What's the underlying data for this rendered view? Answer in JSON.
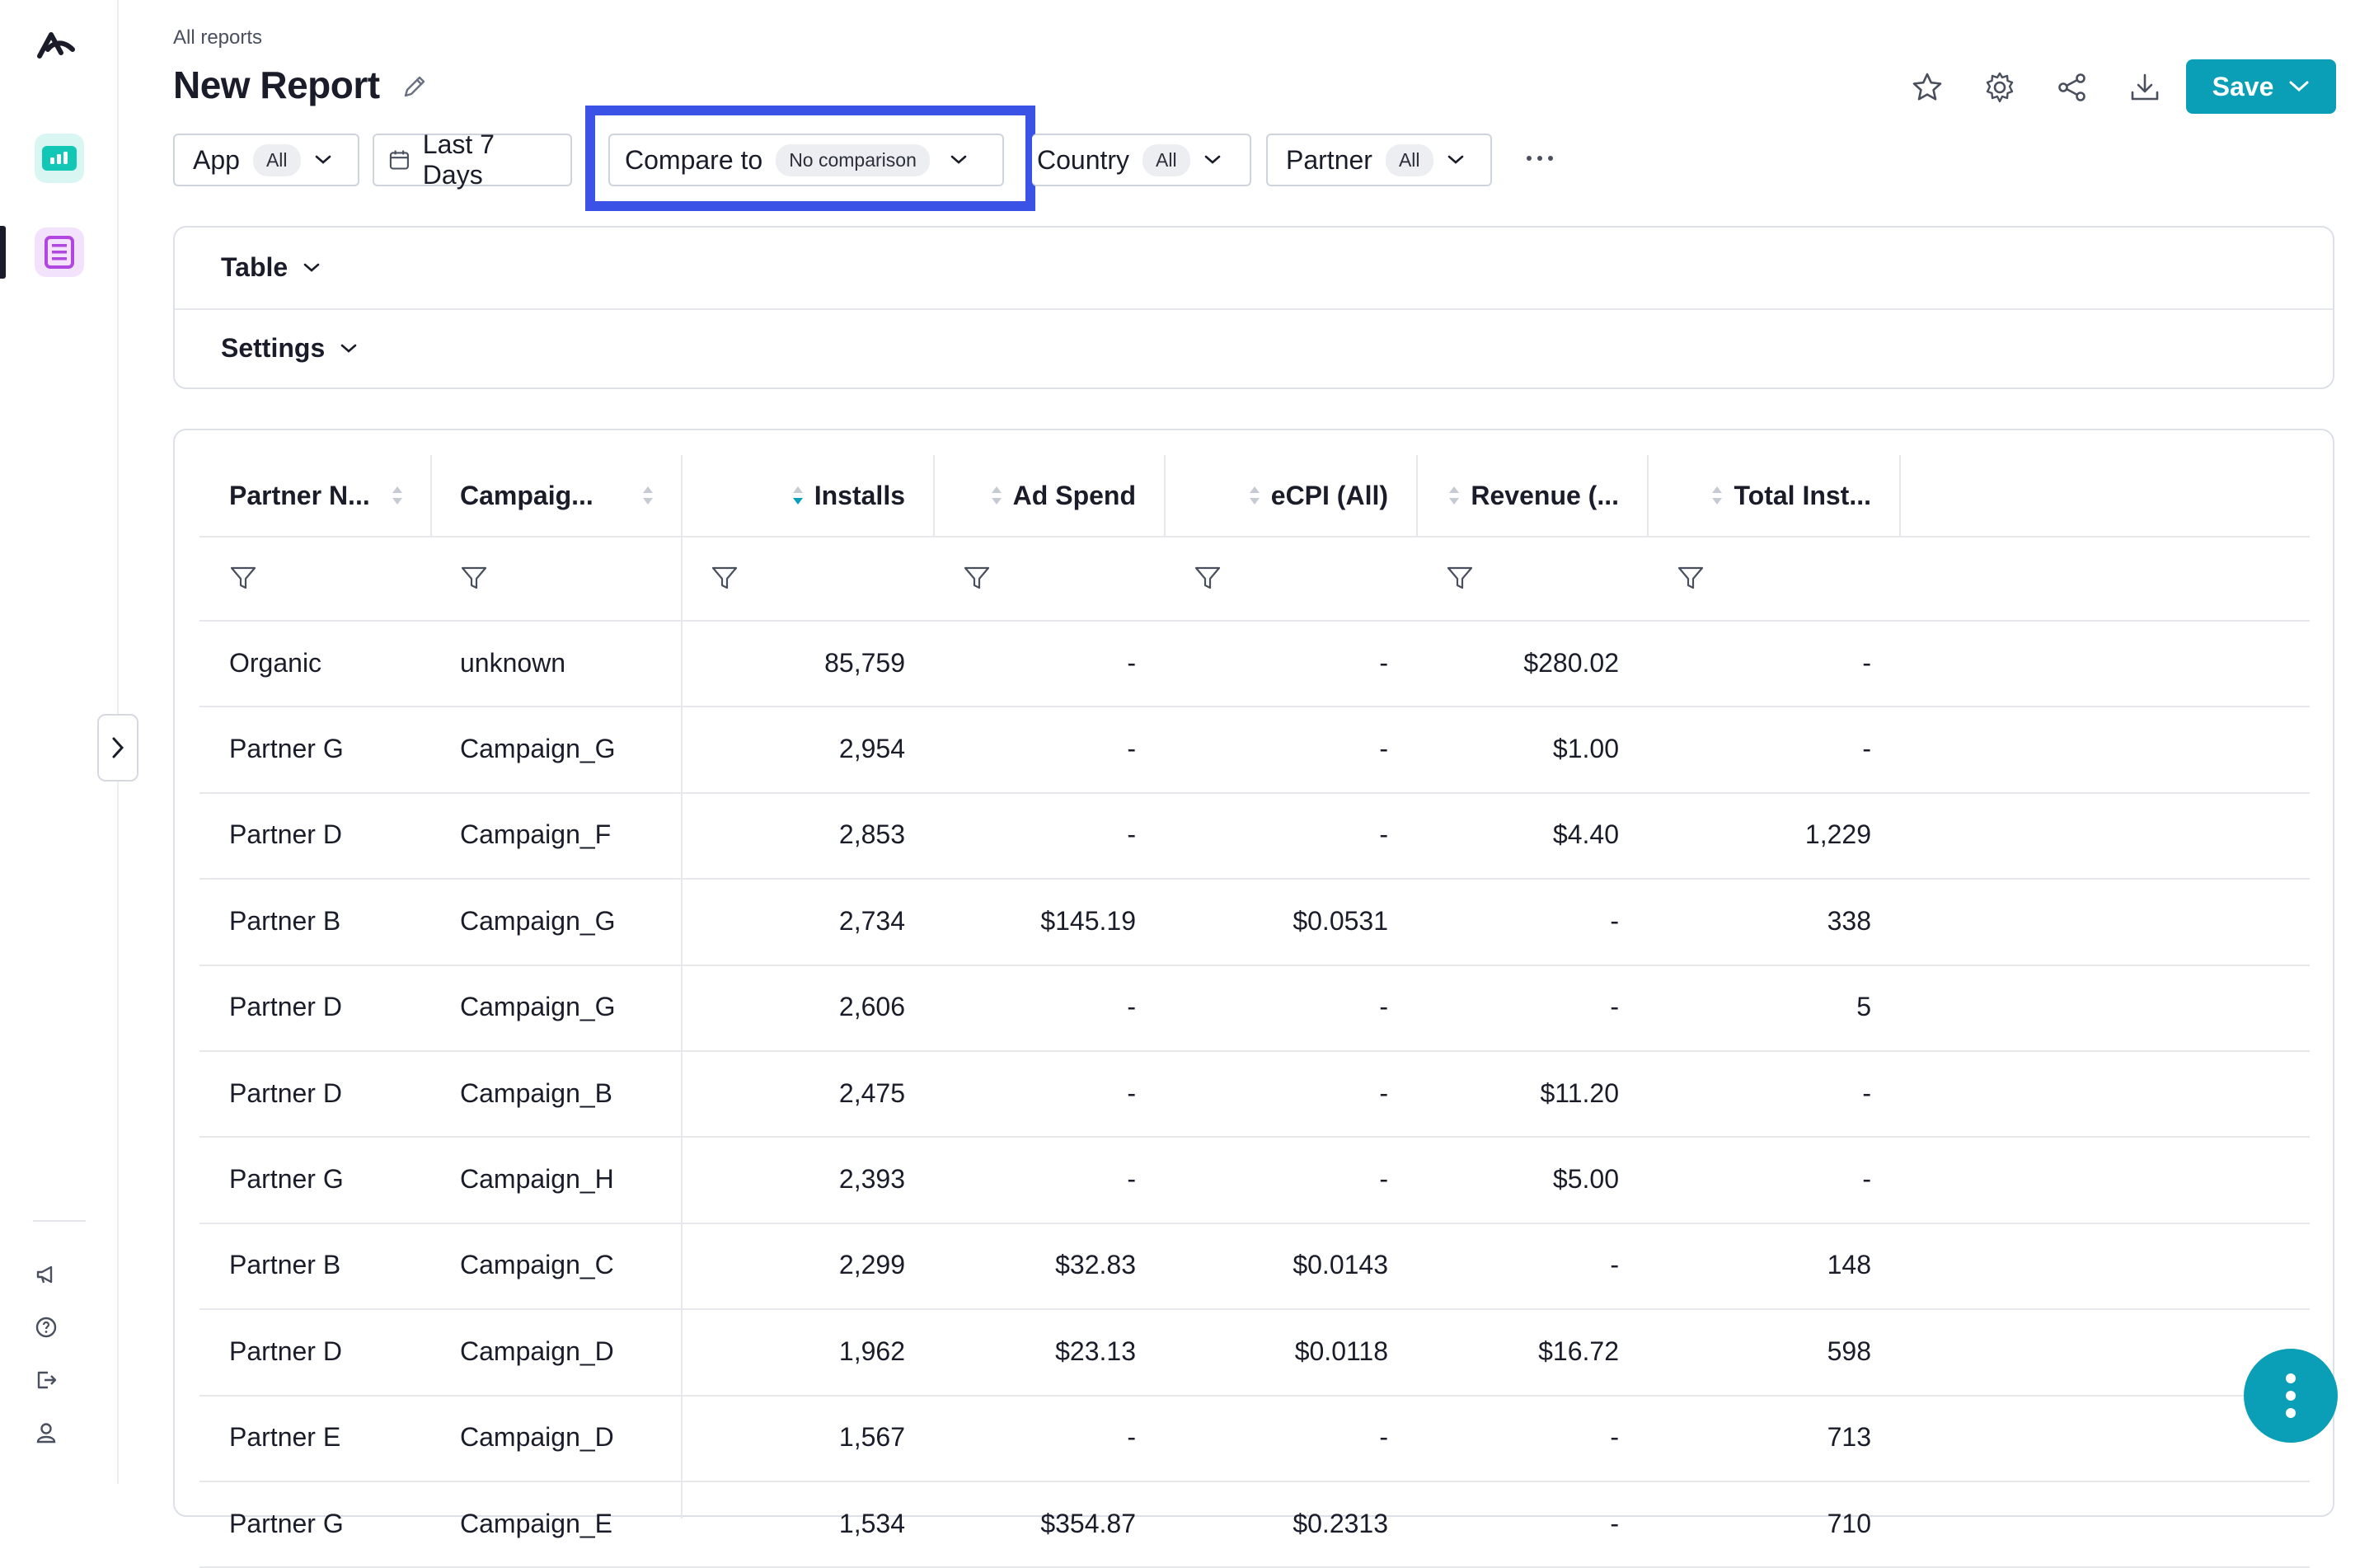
{
  "breadcrumb": "All reports",
  "page_title": "New Report",
  "toolbar": {
    "save_label": "Save"
  },
  "filters": {
    "app": {
      "label": "App",
      "value": "All"
    },
    "date": {
      "label": "Last 7 Days"
    },
    "compare": {
      "label": "Compare to",
      "value": "No comparison"
    },
    "country": {
      "label": "Country",
      "value": "All"
    },
    "partner": {
      "label": "Partner",
      "value": "All"
    }
  },
  "panels": {
    "table_label": "Table",
    "settings_label": "Settings"
  },
  "table": {
    "columns": [
      "Partner N...",
      "Campaig...",
      "Installs",
      "Ad Spend",
      "eCPI (All)",
      "Revenue (...",
      "Total Inst..."
    ],
    "rows": [
      [
        "Organic",
        "unknown",
        "85,759",
        "-",
        "-",
        "$280.02",
        "-"
      ],
      [
        "Partner G",
        "Campaign_G",
        "2,954",
        "-",
        "-",
        "$1.00",
        "-"
      ],
      [
        "Partner D",
        "Campaign_F",
        "2,853",
        "-",
        "-",
        "$4.40",
        "1,229"
      ],
      [
        "Partner B",
        "Campaign_G",
        "2,734",
        "$145.19",
        "$0.0531",
        "-",
        "338"
      ],
      [
        "Partner D",
        "Campaign_G",
        "2,606",
        "-",
        "-",
        "-",
        "5"
      ],
      [
        "Partner D",
        "Campaign_B",
        "2,475",
        "-",
        "-",
        "$11.20",
        "-"
      ],
      [
        "Partner G",
        "Campaign_H",
        "2,393",
        "-",
        "-",
        "$5.00",
        "-"
      ],
      [
        "Partner B",
        "Campaign_C",
        "2,299",
        "$32.83",
        "$0.0143",
        "-",
        "148"
      ],
      [
        "Partner D",
        "Campaign_D",
        "1,962",
        "$23.13",
        "$0.0118",
        "$16.72",
        "598"
      ],
      [
        "Partner E",
        "Campaign_D",
        "1,567",
        "-",
        "-",
        "-",
        "713"
      ],
      [
        "Partner G",
        "Campaign_E",
        "1,534",
        "$354.87",
        "$0.2313",
        "-",
        "710"
      ]
    ]
  },
  "colors": {
    "accent": "#0a9fb6",
    "highlight": "#3a53e6",
    "text": "#1a1d29"
  },
  "icons": {
    "logo": "appsflyer-logo",
    "nav": [
      "dashboard-icon",
      "reports-icon"
    ],
    "bottom": [
      "megaphone-icon",
      "help-icon",
      "logout-icon",
      "user-icon"
    ],
    "top": [
      "star-icon",
      "gear-icon",
      "share-icon",
      "download-icon"
    ]
  }
}
